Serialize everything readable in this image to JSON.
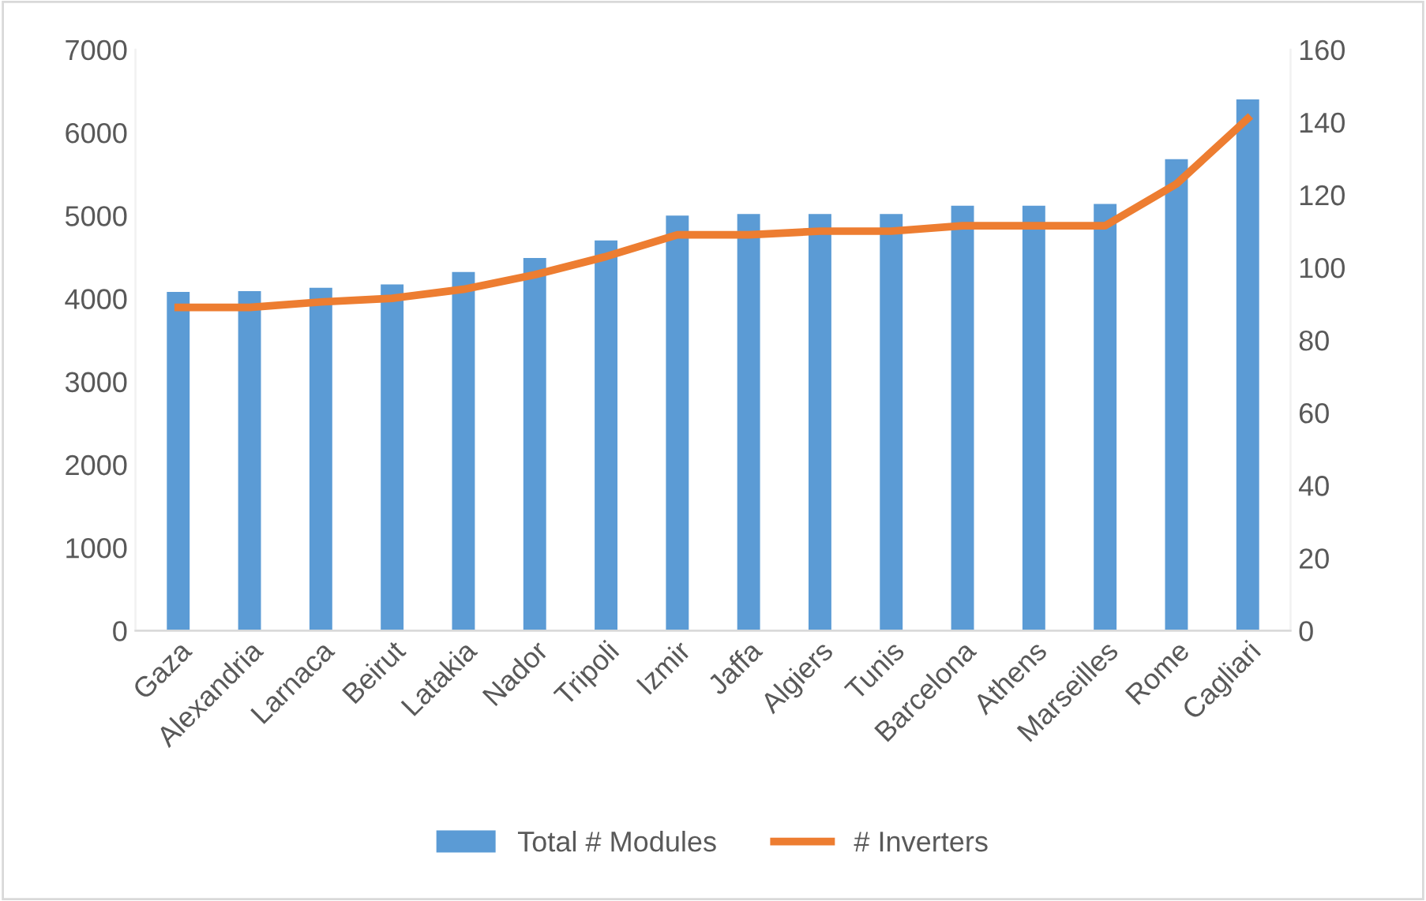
{
  "chart_data": {
    "type": "bar",
    "categories": [
      "Gaza",
      "Alexandria",
      "Larnaca",
      "Beirut",
      "Latakia",
      "Nador",
      "Tripoli",
      "Izmir",
      "Jaffa",
      "Algiers",
      "Tunis",
      "Barcelona",
      "Athens",
      "Marseilles",
      "Rome",
      "Cagliari"
    ],
    "series": [
      {
        "name": "Total # Modules",
        "color": "#5b9bd5",
        "values": [
          4080,
          4090,
          4130,
          4170,
          4320,
          4490,
          4700,
          5000,
          5020,
          5020,
          5020,
          5120,
          5120,
          5140,
          5680,
          6400
        ]
      },
      {
        "name": "# Inverters",
        "type": "line",
        "axis": "y2",
        "color": "#ed7d31",
        "values": [
          89,
          89,
          90.5,
          91.5,
          94,
          98,
          103,
          109,
          109,
          110,
          110,
          111.5,
          111.5,
          111.5,
          123,
          141
        ]
      }
    ],
    "ylim": [
      0,
      7000
    ],
    "yticks": [
      0,
      1000,
      2000,
      3000,
      4000,
      5000,
      6000,
      7000
    ],
    "y2lim": [
      0,
      160
    ],
    "y2ticks": [
      0,
      20,
      40,
      60,
      80,
      100,
      120,
      140,
      160
    ],
    "grid": false,
    "legend": "bottom",
    "marker": "none",
    "line_style": "solid"
  }
}
